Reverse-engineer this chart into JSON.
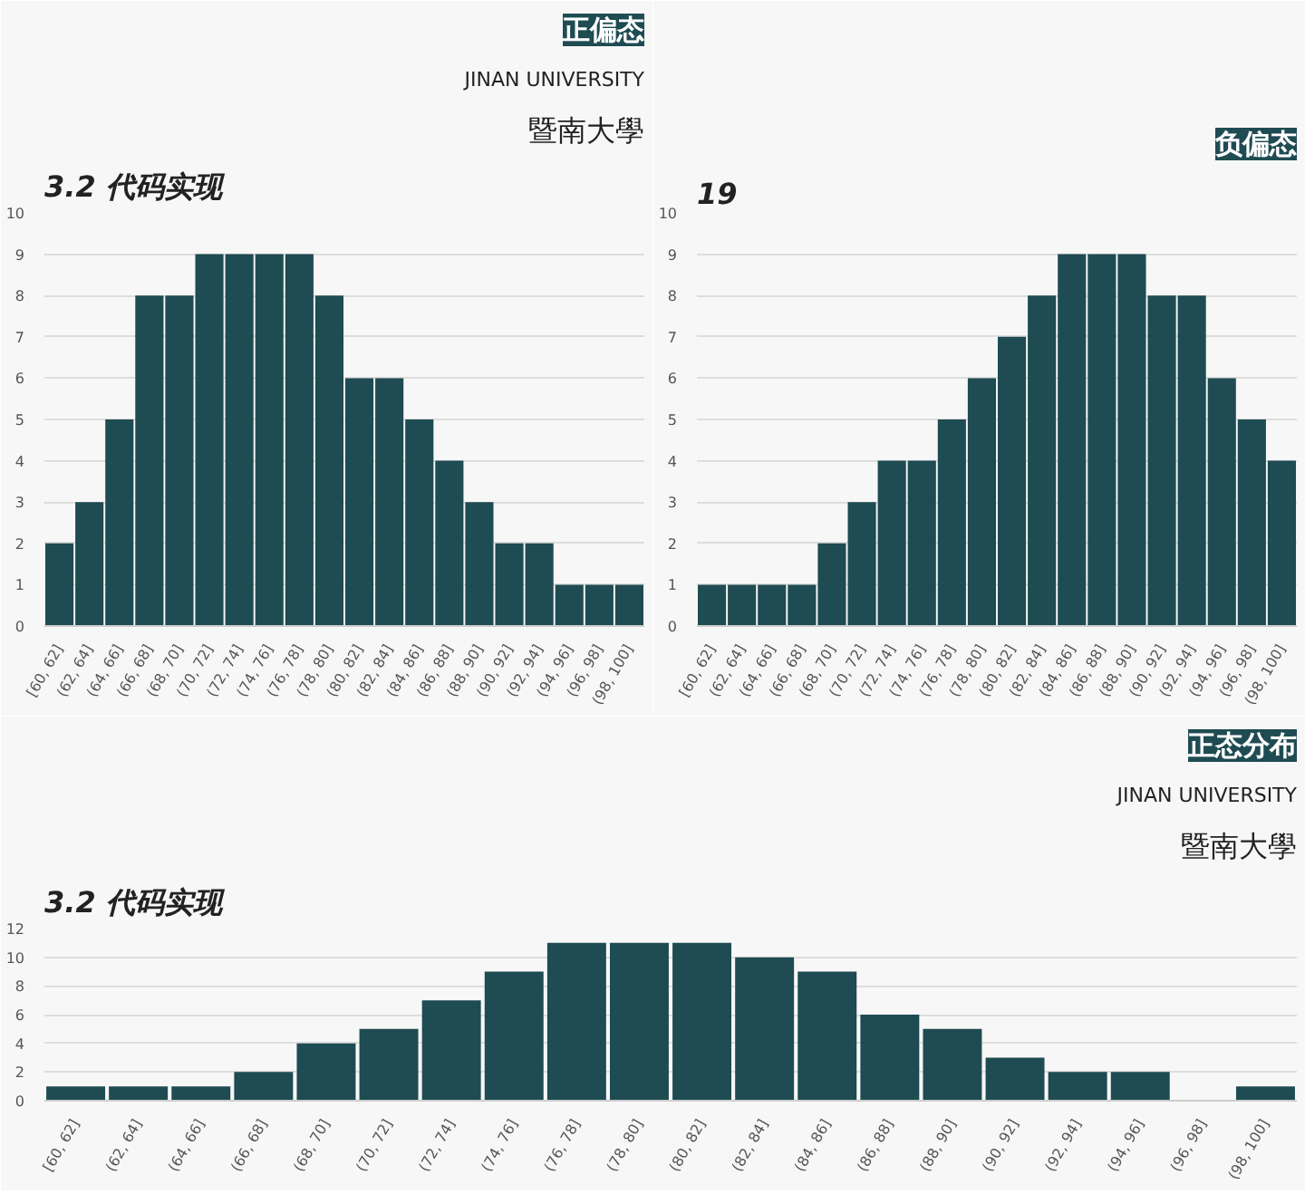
{
  "chart_data": [
    {
      "type": "bar",
      "title": "正偏态",
      "annotations": [
        "3.2 代码实现",
        "暨南大學",
        "JINAN UNIVERSITY"
      ],
      "categories": [
        "[60, 62]",
        "(62, 64]",
        "(64, 66]",
        "(66, 68]",
        "(68, 70]",
        "(70, 72]",
        "(72, 74]",
        "(74, 76]",
        "(76, 78]",
        "(78, 80]",
        "(80, 82]",
        "(82, 84]",
        "(84, 86]",
        "(86, 88]",
        "(88, 90]",
        "(90, 92]",
        "(92, 94]",
        "(94, 96]",
        "(96, 98]",
        "(98, 100]"
      ],
      "values": [
        2,
        3,
        5,
        8,
        8,
        9,
        9,
        9,
        9,
        8,
        6,
        6,
        5,
        4,
        3,
        2,
        2,
        1,
        1,
        1
      ],
      "color": "#1f4b52",
      "ylim": [
        0,
        10
      ],
      "yticks": [
        0,
        1,
        2,
        3,
        4,
        5,
        6,
        7,
        8,
        9,
        10
      ],
      "grid": "y"
    },
    {
      "type": "bar",
      "title": "负偏态",
      "annotations": [
        "19"
      ],
      "categories": [
        "[60, 62]",
        "(62, 64]",
        "(64, 66]",
        "(66, 68]",
        "(68, 70]",
        "(70, 72]",
        "(72, 74]",
        "(74, 76]",
        "(76, 78]",
        "(78, 80]",
        "(80, 82]",
        "(82, 84]",
        "(84, 86]",
        "(86, 88]",
        "(88, 90]",
        "(90, 92]",
        "(92, 94]",
        "(94, 96]",
        "(96, 98]",
        "(98, 100]"
      ],
      "values": [
        1,
        1,
        1,
        1,
        2,
        3,
        4,
        4,
        5,
        6,
        7,
        8,
        9,
        9,
        9,
        8,
        8,
        6,
        5,
        4
      ],
      "color": "#1f4b52",
      "ylim": [
        0,
        10
      ],
      "yticks": [
        0,
        1,
        2,
        3,
        4,
        5,
        6,
        7,
        8,
        9,
        10
      ],
      "grid": "y"
    },
    {
      "type": "bar",
      "title": "正态分布",
      "annotations": [
        "3.2 代码实现",
        "暨南大學",
        "JINAN UNIVERSITY"
      ],
      "categories": [
        "[60, 62]",
        "(62, 64]",
        "(64, 66]",
        "(66, 68]",
        "(68, 70]",
        "(70, 72]",
        "(72, 74]",
        "(74, 76]",
        "(76, 78]",
        "(78, 80]",
        "(80, 82]",
        "(82, 84]",
        "(84, 86]",
        "(86, 88]",
        "(88, 90]",
        "(90, 92]",
        "(92, 94]",
        "(94, 96]",
        "(96, 98]",
        "(98, 100]"
      ],
      "values": [
        1,
        1,
        1,
        2,
        4,
        5,
        7,
        9,
        11,
        11,
        11,
        10,
        9,
        6,
        5,
        3,
        2,
        2,
        0,
        1
      ],
      "color": "#1f4b52",
      "ylim": [
        0,
        12
      ],
      "yticks": [
        0,
        2,
        4,
        6,
        8,
        10,
        12
      ],
      "grid": "y"
    }
  ]
}
